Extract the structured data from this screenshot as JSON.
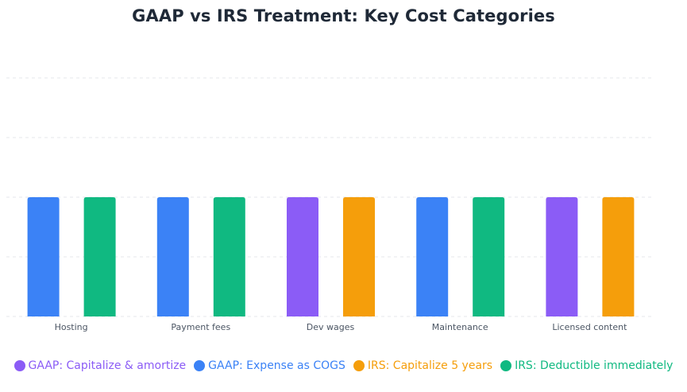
{
  "colors": {
    "gaap_capitalize": "#8b5cf6",
    "gaap_expense": "#3b82f6",
    "irs_capitalize": "#f59e0b",
    "irs_deductible": "#10b981",
    "grid": "#e5e7eb",
    "axis_text": "#4b5563"
  },
  "chart_data": {
    "type": "bar",
    "title": "GAAP vs IRS Treatment: Key Cost Categories",
    "xlabel": "",
    "ylabel": "",
    "ylim": [
      0,
      2
    ],
    "grid": true,
    "legend_position": "bottom",
    "categories": [
      "Hosting",
      "Payment fees",
      "Dev wages",
      "Maintenance",
      "Licensed content"
    ],
    "series": [
      {
        "name": "GAAP: Capitalize & amortize",
        "color": "#8b5cf6",
        "group": "gaap",
        "values": [
          0,
          0,
          1,
          0,
          1
        ]
      },
      {
        "name": "GAAP: Expense as COGS",
        "color": "#3b82f6",
        "group": "gaap",
        "values": [
          1,
          1,
          0,
          1,
          0
        ]
      },
      {
        "name": "IRS: Capitalize 5 years",
        "color": "#f59e0b",
        "group": "irs",
        "values": [
          0,
          0,
          1,
          0,
          1
        ]
      },
      {
        "name": "IRS: Deductible immediately",
        "color": "#10b981",
        "group": "irs",
        "values": [
          1,
          1,
          0,
          1,
          0
        ]
      }
    ]
  }
}
